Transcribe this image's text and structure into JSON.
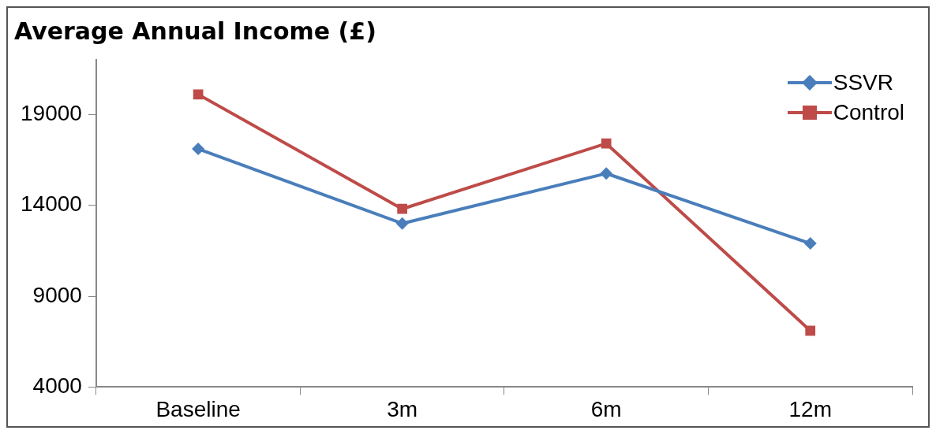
{
  "chart_data": {
    "type": "line",
    "title": "Average Annual Income (£)",
    "categories": [
      "Baseline",
      "3m",
      "6m",
      "12m"
    ],
    "series": [
      {
        "name": "SSVR",
        "color": "#4a7ebb",
        "values": [
          17100,
          13000,
          15750,
          11900
        ],
        "marker": "diamond"
      },
      {
        "name": "Control",
        "color": "#be4b48",
        "values": [
          20100,
          13800,
          17400,
          7100
        ],
        "marker": "square"
      }
    ],
    "ylim": [
      4000,
      22000
    ],
    "yticks": [
      4000,
      9000,
      14000,
      19000
    ],
    "grid": false,
    "legend": "top right",
    "line_style": "solid"
  }
}
